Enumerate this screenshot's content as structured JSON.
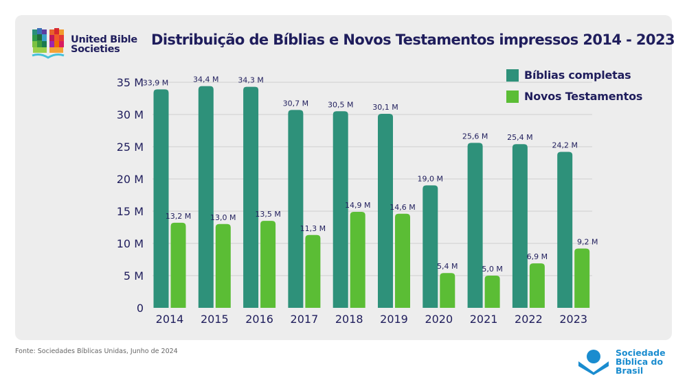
{
  "header": {
    "org_logo_line1": "United Bible",
    "org_logo_line2": "Societies"
  },
  "footer": {
    "source": "Fonte: Sociedades Bíblicas Unidas, Junho de 2024",
    "brand_line1": "Sociedade",
    "brand_line2": "Bíblica do",
    "brand_line3": "Brasil",
    "brand_color": "#1a8ccf"
  },
  "colors": {
    "background": "#ededed",
    "text": "#1f1d5c",
    "gridline": "#d6d6d6"
  },
  "chart_data": {
    "type": "bar",
    "title": "Distribuição de Bíblias e Novos Testamentos impressos 2014 - 2023",
    "xlabel": "",
    "ylabel": "",
    "categories": [
      "2014",
      "2015",
      "2016",
      "2017",
      "2018",
      "2019",
      "2020",
      "2021",
      "2022",
      "2023"
    ],
    "series": [
      {
        "name": "Bíblias completas",
        "color": "#2e917a",
        "values": [
          33.9,
          34.4,
          34.3,
          30.7,
          30.5,
          30.1,
          19.0,
          25.6,
          25.4,
          24.2
        ],
        "labels": [
          "33,9 M",
          "34,4 M",
          "34,3 M",
          "30,7 M",
          "30,5 M",
          "30,1 M",
          "19,0 M",
          "25,6 M",
          "25,4 M",
          "24,2 M"
        ]
      },
      {
        "name": "Novos Testamentos",
        "color": "#5bbd35",
        "values": [
          13.2,
          13.0,
          13.5,
          11.3,
          14.9,
          14.6,
          5.4,
          5.0,
          6.9,
          9.2
        ],
        "labels": [
          "13,2 M",
          "13,0 M",
          "13,5 M",
          "11,3 M",
          "14,9 M",
          "14,6 M",
          "5,4 M",
          "5,0 M",
          "6,9 M",
          "9,2 M"
        ]
      }
    ],
    "ylim": [
      0,
      35
    ],
    "yticks": [
      0,
      5,
      10,
      15,
      20,
      25,
      30,
      35
    ],
    "ytick_labels": [
      "0",
      "5 M",
      "10 M",
      "15 M",
      "20 M",
      "25 M",
      "30 M",
      "35 M"
    ],
    "units": "millions",
    "grid": true,
    "legend_position": "top-right"
  }
}
